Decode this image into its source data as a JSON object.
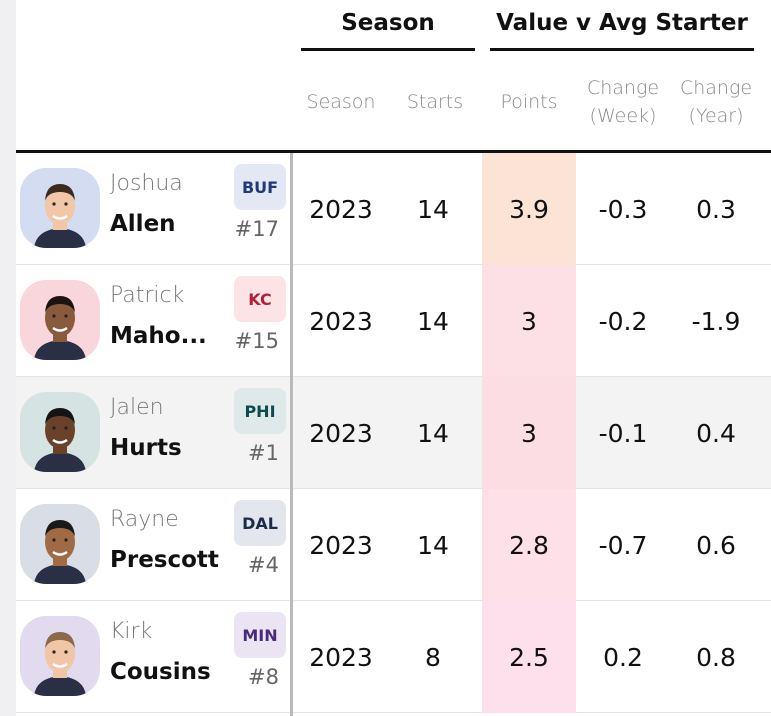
{
  "header": {
    "group_season": "Season",
    "group_value": "Value v Avg Starter",
    "col_season": "Season",
    "col_starts": "Starts",
    "col_points": "Points",
    "col_change_week": "Change\n(Week)",
    "col_change_year": "Change\n(Year)"
  },
  "players": [
    {
      "first": "Joshua",
      "last": "Allen",
      "team": "BUF",
      "number": "#17",
      "season": "2023",
      "starts": "14",
      "points": "3.9",
      "change_week": "-0.3",
      "change_year": "0.3",
      "team_bg": "#e3e8f4",
      "team_color": "#1e3a7a",
      "avatar_bg": "#d3dcf0",
      "points_bg": "#fbe4d6"
    },
    {
      "first": "Patrick",
      "last": "Maho...",
      "team": "KC",
      "number": "#15",
      "season": "2023",
      "starts": "14",
      "points": "3",
      "change_week": "-0.2",
      "change_year": "-1.9",
      "team_bg": "#fbe3e6",
      "team_color": "#b0213a",
      "avatar_bg": "#f8d6dc",
      "points_bg": "#fde0e6"
    },
    {
      "first": "Jalen",
      "last": "Hurts",
      "team": "PHI",
      "number": "#1",
      "season": "2023",
      "starts": "14",
      "points": "3",
      "change_week": "-0.1",
      "change_year": "0.4",
      "team_bg": "#dfe9e9",
      "team_color": "#0e4b4f",
      "avatar_bg": "#d6e3e3",
      "points_bg": "#fbdde3"
    },
    {
      "first": "Rayne",
      "last": "Prescott",
      "team": "DAL",
      "number": "#4",
      "season": "2023",
      "starts": "14",
      "points": "2.8",
      "change_week": "-0.7",
      "change_year": "0.6",
      "team_bg": "#e3e6ec",
      "team_color": "#1c2c4c",
      "avatar_bg": "#d9dde5",
      "points_bg": "#fde0e8"
    },
    {
      "first": "Kirk",
      "last": "Cousins",
      "team": "MIN",
      "number": "#8",
      "season": "2023",
      "starts": "8",
      "points": "2.5",
      "change_week": "0.2",
      "change_year": "0.8",
      "team_bg": "#ebe4f3",
      "team_color": "#4a2a7a",
      "avatar_bg": "#e2daee",
      "points_bg": "#fde0ec"
    }
  ]
}
